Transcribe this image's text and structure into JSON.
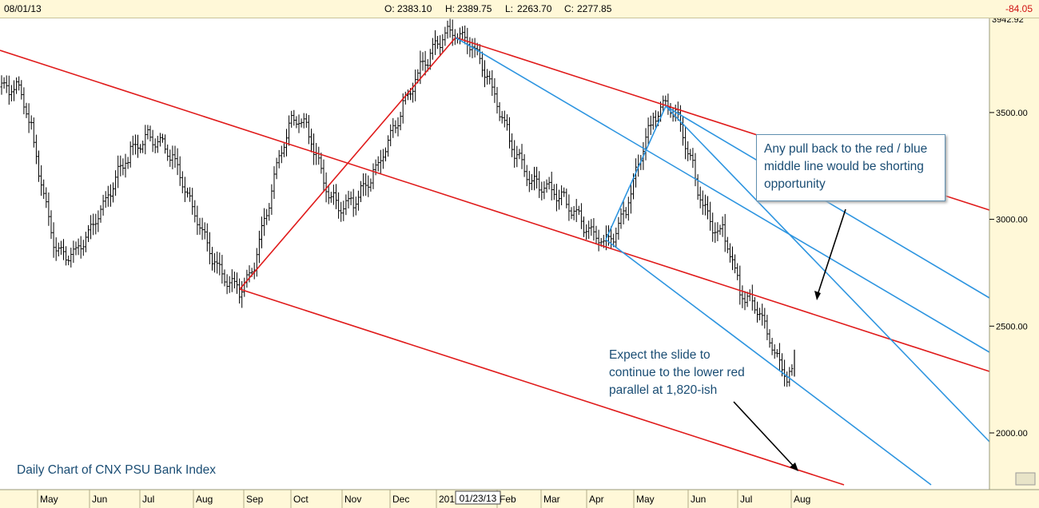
{
  "header": {
    "date": "08/01/13",
    "open_label": "O:",
    "open": "2383.10",
    "high_label": "H:",
    "high": "2389.75",
    "low_label": "L:",
    "low": "2263.70",
    "close_label": "C:",
    "close": "2277.85",
    "change": "-84.05"
  },
  "annotations": {
    "box_line1": "Any pull back to the red / blue",
    "box_line2": "middle line would be shorting",
    "box_line3": "opportunity",
    "slide_line1": "Expect the slide to",
    "slide_line2": "continue to the lower red",
    "slide_line3": "parallel at 1,820-ish"
  },
  "chart_data": {
    "type": "candlestick",
    "title": "Daily Chart of CNX PSU Bank Index",
    "y_ticks": [
      2000,
      2500,
      3000,
      3500
    ],
    "y_tick_labels": [
      "2000.00",
      "2500.00",
      "3000.00",
      "3500.00"
    ],
    "y_top_label": "3942.92",
    "ylim": [
      1760,
      3960
    ],
    "x_labels": [
      "May",
      "Jun",
      "Jul",
      "Aug",
      "Sep",
      "Oct",
      "Nov",
      "Dec",
      "201",
      "Feb",
      "Mar",
      "Apr",
      "May",
      "Jun",
      "Jul",
      "Aug"
    ],
    "x_cursor_label": "01/23/13",
    "colors": {
      "red_fork": "#e01b1b",
      "blue_fork": "#2e95e0",
      "price": "#000000"
    },
    "red_pitchfork": {
      "pivot": {
        "date": "Aug",
        "value": 2680
      },
      "high": {
        "date": "201",
        "value": 3870
      },
      "median_slope_per_month": -115
    },
    "blue_pitchfork": {
      "pivot": {
        "date": "Apr",
        "value": 2900
      },
      "high": {
        "date": "May",
        "value": 3530
      }
    },
    "key_points": [
      {
        "date": "May",
        "value": 3620
      },
      {
        "date": "Jun",
        "value": 2830
      },
      {
        "date": "Jul",
        "value": 3380
      },
      {
        "date": "Aug",
        "value": 2680
      },
      {
        "date": "Oct",
        "value": 3470
      },
      {
        "date": "Nov",
        "value": 3060
      },
      {
        "date": "201",
        "value": 3870
      },
      {
        "date": "Mar",
        "value": 3150
      },
      {
        "date": "Apr",
        "value": 2900
      },
      {
        "date": "May",
        "value": 3530
      },
      {
        "date": "Jun",
        "value": 2950
      },
      {
        "date": "Jul",
        "value": 2620
      },
      {
        "date": "Aug",
        "value": 2264
      }
    ],
    "last_bar": {
      "open": 2383.1,
      "high": 2389.75,
      "low": 2263.7,
      "close": 2277.85
    }
  }
}
